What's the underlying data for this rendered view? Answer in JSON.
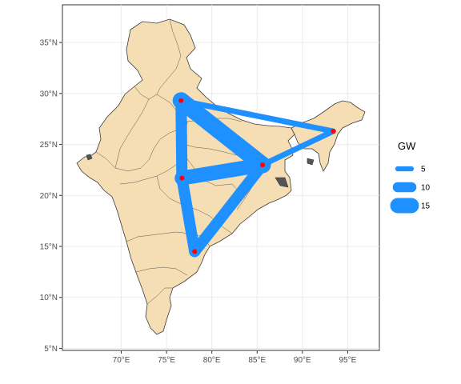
{
  "chart_data": {
    "type": "map",
    "title": "",
    "xlabel": "",
    "ylabel": "",
    "xlim": [
      63.5,
      98.5
    ],
    "ylim": [
      4.8,
      38.7
    ],
    "x_ticks": [
      {
        "value": 70,
        "label": "70°E"
      },
      {
        "value": 75,
        "label": "75°E"
      },
      {
        "value": 80,
        "label": "80°E"
      },
      {
        "value": 85,
        "label": "85°E"
      },
      {
        "value": 90,
        "label": "90°E"
      },
      {
        "value": 95,
        "label": "95°E"
      }
    ],
    "y_ticks": [
      {
        "value": 5,
        "label": "5°N"
      },
      {
        "value": 10,
        "label": "10°N"
      },
      {
        "value": 15,
        "label": "15°N"
      },
      {
        "value": 20,
        "label": "20°N"
      },
      {
        "value": 25,
        "label": "25°N"
      },
      {
        "value": 30,
        "label": "30°N"
      },
      {
        "value": 35,
        "label": "35°N"
      }
    ],
    "grid": true,
    "nodes": [
      {
        "lon": 76.6,
        "lat": 29.3
      },
      {
        "lon": 85.6,
        "lat": 23.0
      },
      {
        "lon": 76.7,
        "lat": 21.7
      },
      {
        "lon": 78.1,
        "lat": 14.5
      },
      {
        "lon": 93.4,
        "lat": 26.3
      }
    ],
    "flows": [
      {
        "from": 0,
        "to": 1,
        "gw": 15
      },
      {
        "from": 1,
        "to": 2,
        "gw": 13
      },
      {
        "from": 0,
        "to": 2,
        "gw": 10
      },
      {
        "from": 2,
        "to": 3,
        "gw": 10
      },
      {
        "from": 1,
        "to": 3,
        "gw": 10
      },
      {
        "from": 0,
        "to": 4,
        "gw": 5
      },
      {
        "from": 1,
        "to": 4,
        "gw": 5
      }
    ],
    "legend": {
      "title": "GW",
      "position": "right",
      "entries": [
        {
          "label": "5",
          "value": 5
        },
        {
          "label": "10",
          "value": 10
        },
        {
          "label": "15",
          "value": 15
        }
      ]
    },
    "colors": {
      "flow": "#1E90FF",
      "node": "#FF0000",
      "land": "#F5DEB3",
      "border": "#3a3a3a",
      "panel": "#ffffff",
      "grid": "#ebebeb"
    }
  }
}
